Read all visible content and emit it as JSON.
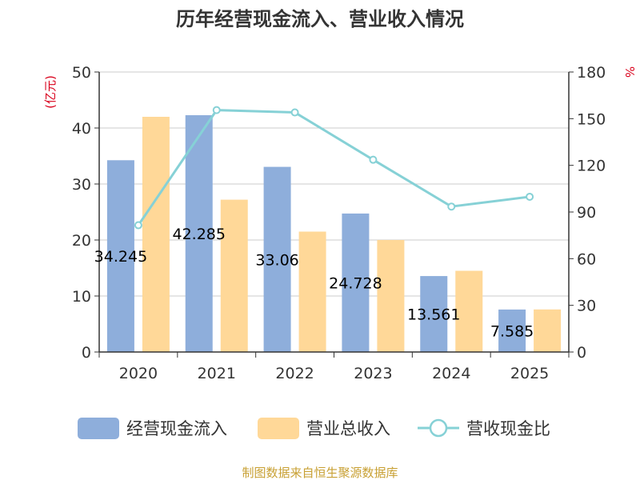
{
  "chart_data": {
    "type": "bar",
    "title": "历年经营现金流入、营业收入情况",
    "categories": [
      "2020",
      "2021",
      "2022",
      "2023",
      "2024",
      "2025"
    ],
    "series": [
      {
        "name": "经营现金流入",
        "kind": "bar",
        "axis": "left",
        "color": "#8eaedb",
        "values": [
          34.245,
          42.285,
          33.06,
          24.728,
          13.561,
          7.585
        ],
        "labels": [
          "34.245",
          "42.285",
          "33.06",
          "24.728",
          "13.561",
          "7.585"
        ]
      },
      {
        "name": "营业总收入",
        "kind": "bar",
        "axis": "left",
        "color": "#ffd898",
        "values": [
          42.0,
          27.2,
          21.5,
          20.0,
          14.5,
          7.6
        ]
      },
      {
        "name": "营收现金比",
        "kind": "line",
        "axis": "right",
        "color": "#86d1d6",
        "values": [
          81.5,
          155.5,
          154.0,
          123.6,
          93.5,
          99.8
        ]
      }
    ],
    "ylabel": "(亿元)",
    "ylabel_right": "%",
    "ylim": [
      0,
      50
    ],
    "yticks": [
      "0",
      "10",
      "20",
      "30",
      "40",
      "50"
    ],
    "ylim_right": [
      0,
      180
    ],
    "yticks_right": [
      "0",
      "30",
      "60",
      "90",
      "120",
      "150",
      "180"
    ],
    "grid": true,
    "legend_position": "bottom",
    "source": "制图数据来自恒生聚源数据库"
  }
}
